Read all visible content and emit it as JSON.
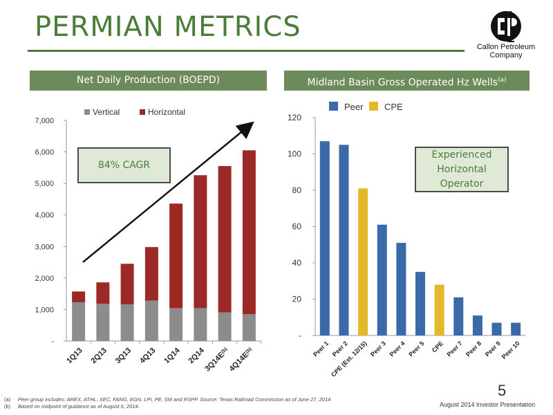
{
  "page": {
    "title": "PERMIAN METRICS",
    "page_number": "5",
    "presentation": "August 2014 Investor Presentation",
    "logo": {
      "text_line1": "Callon Petroleum",
      "text_line2": "Company"
    },
    "footnotes": [
      {
        "key": "(a)",
        "text": "Peer group includes: AREX, ATHL, XEC, FANG, EGN, LPI, PE, SM and RSPP. Source: Texas Railroad Commission as of June 27, 2014."
      },
      {
        "key": "(b)",
        "text": "Based on midpoint of guidance as of August 6, 2014."
      }
    ]
  },
  "left_panel": {
    "header": "Net Daily Production (BOEPD)",
    "callout": "84% CAGR"
  },
  "right_panel": {
    "header": "Midland Basin Gross Operated Hz Wells",
    "header_sup": "(a)",
    "callout_lines": [
      "Experienced",
      "Horizontal",
      "Operator"
    ]
  },
  "chart_data": [
    {
      "type": "bar",
      "stacked": true,
      "categories": [
        "1Q13",
        "2Q13",
        "3Q13",
        "4Q13",
        "1Q14",
        "2Q14",
        "3Q14E",
        "4Q14E"
      ],
      "category_sup": [
        "",
        "",
        "",
        "",
        "",
        "",
        "(b)",
        "(b)"
      ],
      "series": [
        {
          "name": "Vertical",
          "color": "#8c8c8c",
          "values": [
            1230,
            1180,
            1160,
            1280,
            1040,
            1040,
            910,
            850
          ]
        },
        {
          "name": "Horizontal",
          "color": "#9b2a26",
          "values": [
            340,
            680,
            1290,
            1700,
            3320,
            4220,
            4640,
            5200
          ]
        }
      ],
      "ylim": [
        0,
        7000
      ],
      "yticks": [
        0,
        1000,
        2000,
        3000,
        4000,
        5000,
        6000,
        7000
      ],
      "ytick_labels": [
        "-",
        "1,000",
        "2,000",
        "3,000",
        "4,000",
        "5,000",
        "6,000",
        "7,000"
      ],
      "legend": "top",
      "grid": false
    },
    {
      "type": "bar",
      "categories": [
        "Peer 1",
        "Peer 2",
        "CPE (Est. 12/15)",
        "Peer 3",
        "Peer 4",
        "Peer 5",
        "CPE",
        "Peer 7",
        "Peer 8",
        "Peer 9",
        "Peer 10"
      ],
      "values": [
        107,
        105,
        81,
        61,
        51,
        35,
        28,
        21,
        11,
        7,
        7
      ],
      "groups": [
        "Peer",
        "Peer",
        "CPE",
        "Peer",
        "Peer",
        "Peer",
        "CPE",
        "Peer",
        "Peer",
        "Peer",
        "Peer"
      ],
      "legend_entries": [
        {
          "name": "Peer",
          "color": "#3b6aa8"
        },
        {
          "name": "CPE",
          "color": "#e5b82a"
        }
      ],
      "ylim": [
        0,
        120
      ],
      "yticks": [
        0,
        20,
        40,
        60,
        80,
        100,
        120
      ],
      "ytick_labels": [
        "-",
        "20",
        "40",
        "60",
        "80",
        "100",
        "120"
      ],
      "legend": "top-left",
      "grid": false
    }
  ]
}
